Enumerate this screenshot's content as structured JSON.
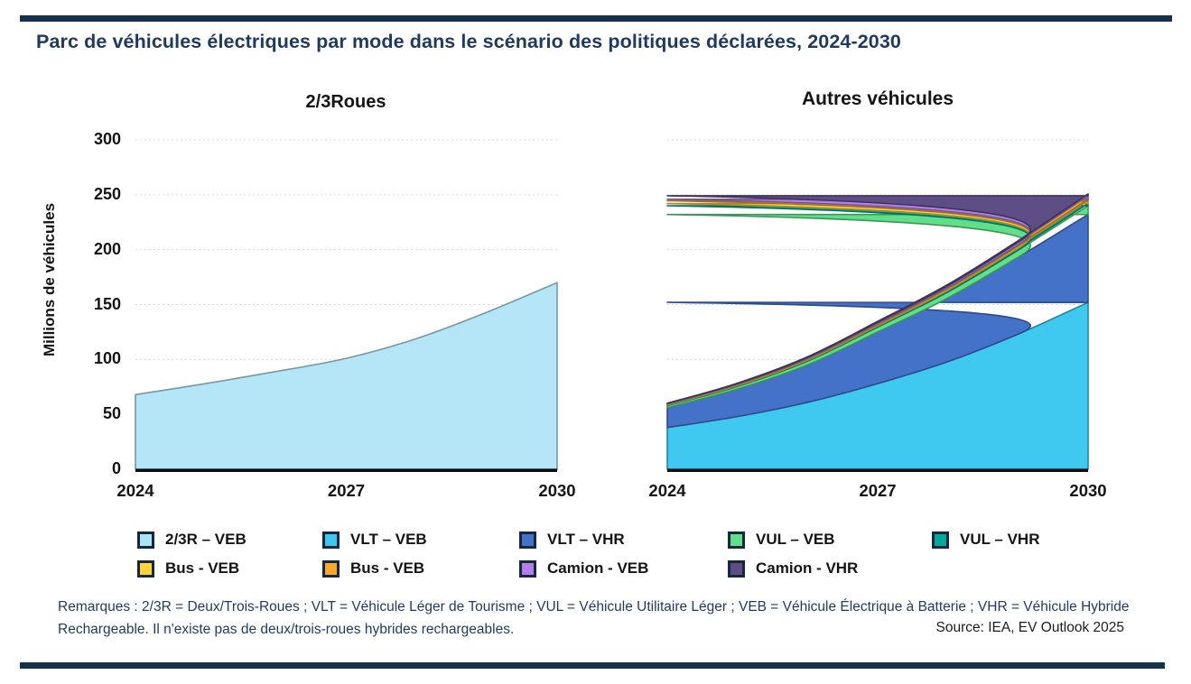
{
  "page": {
    "title": "Parc de véhicules électriques par mode dans le scénario des politiques déclarées, 2024-2030",
    "accent_color": "#1E3A5F",
    "divider_color": "#17304E",
    "background_color": "#FFFFFF"
  },
  "axis": {
    "y_label": "Millions de véhicules",
    "y_ticks": [
      300,
      250,
      200,
      150,
      100,
      50,
      0
    ],
    "x_tick_labels": [
      "2024",
      "2027",
      "2030"
    ]
  },
  "chart_data": [
    {
      "type": "area",
      "title": "2/3Roues",
      "x": [
        2024,
        2025,
        2026,
        2027,
        2028,
        2029,
        2030
      ],
      "x_tick_labels": [
        "2024",
        "2027",
        "2030"
      ],
      "ylabel": "Millions de véhicules",
      "ylim": [
        0,
        300
      ],
      "grid": true,
      "stacked": false,
      "series": [
        {
          "name": "2/3R – VEB",
          "color": "#B5E6F8",
          "values": [
            68,
            78,
            89,
            101,
            119,
            143,
            170
          ]
        }
      ]
    },
    {
      "type": "area",
      "title": "Autres véhicules",
      "x": [
        2024,
        2025,
        2026,
        2027,
        2028,
        2029,
        2030
      ],
      "x_tick_labels": [
        "2024",
        "2027",
        "2030"
      ],
      "ylabel": "Millions de véhicules",
      "ylim": [
        0,
        300
      ],
      "grid": true,
      "stacked": true,
      "series": [
        {
          "name": "VLT – VEB",
          "color": "#3FC8F0",
          "values": [
            38,
            48,
            61,
            78,
            98,
            123,
            152
          ]
        },
        {
          "name": "VLT – VHR",
          "color": "#4472C8",
          "values": [
            18,
            25,
            34,
            47,
            58,
            70,
            80
          ]
        },
        {
          "name": "VUL – VEB",
          "color": "#5FE088",
          "values": [
            2,
            2.5,
            3.5,
            4.5,
            5.5,
            6.5,
            8
          ]
        },
        {
          "name": "VUL – VHR",
          "color": "#00A99D",
          "values": [
            0.4,
            0.6,
            0.8,
            1.0,
            1.3,
            1.6,
            2.0
          ]
        },
        {
          "name": "Bus - VEB",
          "color": "#FFD43B",
          "values": [
            0.8,
            1.0,
            1.2,
            1.5,
            1.8,
            2.1,
            2.5
          ]
        },
        {
          "name": "Bus - VEB",
          "color": "#FFA726",
          "values": [
            0.3,
            0.4,
            0.5,
            0.7,
            0.9,
            1.1,
            1.4
          ]
        },
        {
          "name": "Camion - VEB",
          "color": "#B07FE8",
          "values": [
            0.4,
            0.6,
            0.9,
            1.3,
            1.8,
            2.4,
            3.2
          ]
        },
        {
          "name": "Camion - VHR",
          "color": "#5E4E86",
          "values": [
            0.2,
            0.3,
            0.5,
            0.7,
            1.0,
            1.3,
            1.7
          ]
        }
      ]
    }
  ],
  "legend": {
    "position": "bottom",
    "rows": [
      [
        {
          "label": "2/3R – VEB",
          "color": "#A9E4F5"
        },
        {
          "label": "VLT – VEB",
          "color": "#3FC8F0"
        },
        {
          "label": "VLT – VHR",
          "color": "#4472C8"
        },
        {
          "label": "VUL – VEB",
          "color": "#5FE088"
        },
        {
          "label": "VUL – VHR",
          "color": "#00A99D"
        }
      ],
      [
        {
          "label": "Bus - VEB",
          "color": "#FFD43B"
        },
        {
          "label": "Bus - VEB",
          "color": "#FFA726"
        },
        {
          "label": "Camion - VEB",
          "color": "#B07FE8"
        },
        {
          "label": "Camion - VHR",
          "color": "#5E4E86"
        }
      ]
    ]
  },
  "notes": {
    "remarks": "Remarques : 2/3R = Deux/Trois-Roues ; VLT = Véhicule Léger de Tourisme ; VUL = Véhicule Utilitaire Léger ; VEB = Véhicule Électrique à Batterie ; VHR = Véhicule Hybride Rechargeable. Il n'existe pas de deux/trois-roues hybrides rechargeables.",
    "source": "Source: IEA, EV Outlook 2025"
  }
}
